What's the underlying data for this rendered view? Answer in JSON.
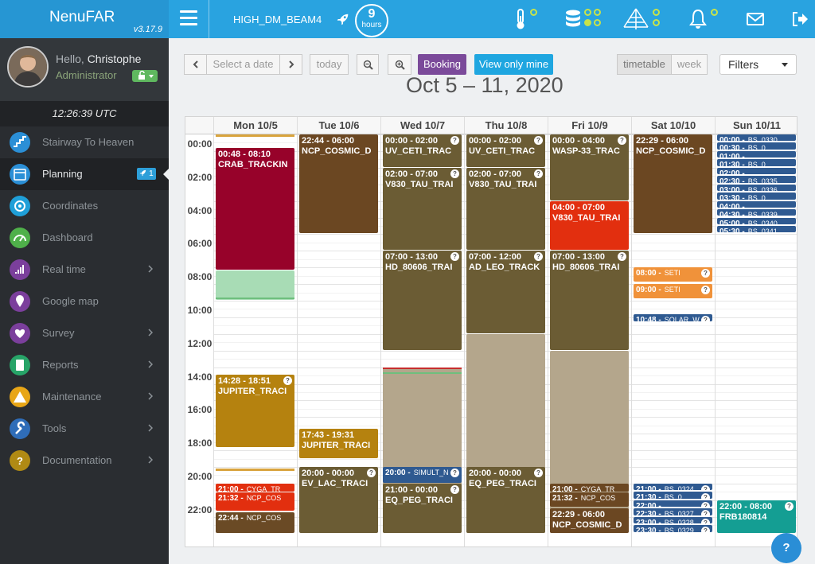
{
  "app": {
    "name": "NenuFAR",
    "version": "v3.17.9"
  },
  "header": {
    "beam": "HIGH_DM_BEAM4",
    "hours_value": "9",
    "hours_unit": "hours"
  },
  "user": {
    "hello": "Hello,",
    "name": "Christophe",
    "role": "Administrator"
  },
  "clock": "12:26:39 UTC",
  "nav": [
    {
      "label": "Stairway To Heaven",
      "icon": "stairs-icon",
      "color": "#2b8fd6"
    },
    {
      "label": "Planning",
      "icon": "calendar-icon",
      "color": "#2b8fd6",
      "badge": "1",
      "active": true
    },
    {
      "label": "Coordinates",
      "icon": "target-icon",
      "color": "#1f9fd8"
    },
    {
      "label": "Dashboard",
      "icon": "gauge-icon",
      "color": "#4fb04a"
    },
    {
      "label": "Real time",
      "icon": "signal-icon",
      "color": "#7b3f9c",
      "chevron": true
    },
    {
      "label": "Google map",
      "icon": "map-pin-icon",
      "color": "#7b3f9c"
    },
    {
      "label": "Survey",
      "icon": "heartbeat-icon",
      "color": "#7b3f9c",
      "chevron": true
    },
    {
      "label": "Reports",
      "icon": "report-icon",
      "color": "#27a468",
      "chevron": true
    },
    {
      "label": "Maintenance",
      "icon": "warning-icon",
      "color": "#e8a617",
      "chevron": true
    },
    {
      "label": "Tools",
      "icon": "wrench-icon",
      "color": "#2f6db8",
      "chevron": true
    },
    {
      "label": "Documentation",
      "icon": "question-icon",
      "color": "#b08a14",
      "chevron": true
    }
  ],
  "toolbar": {
    "select_date": "Select a date",
    "today": "today",
    "booking": "Booking",
    "view_only_mine": "View only mine",
    "timetable": "timetable",
    "week": "week",
    "filters": "Filters"
  },
  "range_title": "Oct 5 – 11, 2020",
  "days": [
    "Mon 10/5",
    "Tue 10/6",
    "Wed 10/7",
    "Thu 10/8",
    "Fri 10/9",
    "Sat 10/10",
    "Sun 10/11"
  ],
  "hours": [
    "00:00",
    "02:00",
    "04:00",
    "06:00",
    "08:00",
    "10:00",
    "12:00",
    "14:00",
    "16:00",
    "18:00",
    "20:00",
    "22:00"
  ],
  "events": [
    {
      "day": 0,
      "start": 0.0,
      "end": 0.2,
      "color": "#d9a43e",
      "bar": true
    },
    {
      "day": 0,
      "start": 0.8,
      "end": 8.17,
      "color": "#97022a",
      "time": "00:48 - 08:10",
      "title": "CRAB_TRACKIN"
    },
    {
      "day": 0,
      "start": 8.17,
      "end": 10.0,
      "color": "#a8dcb5",
      "empty": true
    },
    {
      "day": 0,
      "start": 14.47,
      "end": 18.85,
      "color": "#b5820f",
      "time": "14:28 - 18:51",
      "title": "JUPITER_TRACI",
      "q": true
    },
    {
      "day": 0,
      "start": 20.1,
      "end": 20.3,
      "color": "#d9a43e",
      "bar": true
    },
    {
      "day": 0,
      "start": 21.0,
      "end": 21.53,
      "color": "#e22f0f",
      "time": "21:00 -",
      "title": "CYGA_TR",
      "small": true
    },
    {
      "day": 0,
      "start": 21.53,
      "end": 22.7,
      "color": "#e22f0f",
      "time": "21:32 -",
      "title": "NCP_COS",
      "small": true
    },
    {
      "day": 0,
      "start": 22.73,
      "end": 24.0,
      "color": "#6a4a25",
      "time": "22:44 -",
      "title": "NCP_COS",
      "small": true
    },
    {
      "day": 1,
      "start": 0.0,
      "end": 6.0,
      "color": "#6b4722",
      "time": "22:44 - 06:00",
      "title": "NCP_COSMIC_D"
    },
    {
      "day": 1,
      "start": 17.72,
      "end": 19.52,
      "color": "#b5820f",
      "time": "17:43 - 19:31",
      "title": "JUPITER_TRACI"
    },
    {
      "day": 1,
      "start": 20.0,
      "end": 24.0,
      "color": "#6b5c34",
      "time": "20:00 - 00:00",
      "title": "EV_LAC_TRACI",
      "q": true
    },
    {
      "day": 2,
      "start": 0.0,
      "end": 2.0,
      "color": "#6b5c34",
      "time": "00:00 - 02:00",
      "title": "UV_CETI_TRAC",
      "q": true
    },
    {
      "day": 2,
      "start": 2.0,
      "end": 7.0,
      "color": "#6b5c34",
      "time": "02:00 - 07:00",
      "title": "V830_TAU_TRAI",
      "q": true
    },
    {
      "day": 2,
      "start": 7.0,
      "end": 13.0,
      "color": "#6b5c34",
      "time": "07:00 - 13:00",
      "title": "HD_80606_TRAI",
      "q": true
    },
    {
      "day": 2,
      "start": 14.0,
      "end": 24.0,
      "color": "#b4a68c",
      "empty": true
    },
    {
      "day": 2,
      "start": 20.0,
      "end": 21.0,
      "color": "#2f5a91",
      "time": "20:00 -",
      "title": "SIMULT_N",
      "small": true,
      "q": true
    },
    {
      "day": 2,
      "start": 21.0,
      "end": 24.0,
      "color": "#6b5c34",
      "time": "21:00 - 00:00",
      "title": "EQ_PEG_TRACI",
      "q": true
    },
    {
      "day": 3,
      "start": 0.0,
      "end": 2.0,
      "color": "#6b5c34",
      "time": "00:00 - 02:00",
      "title": "UV_CETI_TRAC",
      "q": true
    },
    {
      "day": 3,
      "start": 2.0,
      "end": 7.0,
      "color": "#6b5c34",
      "time": "02:00 - 07:00",
      "title": "V830_TAU_TRAI",
      "q": true
    },
    {
      "day": 3,
      "start": 7.0,
      "end": 12.0,
      "color": "#6b5c34",
      "time": "07:00 - 12:00",
      "title": "AD_LEO_TRACK",
      "q": true
    },
    {
      "day": 3,
      "start": 12.0,
      "end": 24.0,
      "color": "#b4a68c",
      "empty": true
    },
    {
      "day": 3,
      "start": 20.0,
      "end": 24.0,
      "color": "#6b5c34",
      "time": "20:00 - 00:00",
      "title": "EQ_PEG_TRACI",
      "q": true
    },
    {
      "day": 4,
      "start": 0.0,
      "end": 4.0,
      "color": "#6b5c34",
      "time": "00:00 - 04:00",
      "title": "WASP-33_TRAC",
      "q": true
    },
    {
      "day": 4,
      "start": 4.0,
      "end": 7.0,
      "color": "#e22f0f",
      "time": "04:00 - 07:00",
      "title": "V830_TAU_TRAI"
    },
    {
      "day": 4,
      "start": 7.0,
      "end": 13.0,
      "color": "#6b5c34",
      "time": "07:00 - 13:00",
      "title": "HD_80606_TRAI",
      "q": true
    },
    {
      "day": 4,
      "start": 13.0,
      "end": 24.0,
      "color": "#b4a68c",
      "empty": true
    },
    {
      "day": 4,
      "start": 21.0,
      "end": 21.53,
      "color": "#6b4722",
      "time": "21:00 -",
      "title": "CYGA_TR",
      "small": true
    },
    {
      "day": 4,
      "start": 21.53,
      "end": 22.45,
      "color": "#6b4722",
      "time": "21:32 -",
      "title": "NCP_COS",
      "small": true
    },
    {
      "day": 4,
      "start": 22.48,
      "end": 24.0,
      "color": "#6b4722",
      "time": "22:29 - 06:00",
      "title": "NCP_COSMIC_D"
    },
    {
      "day": 5,
      "start": 0.0,
      "end": 6.0,
      "color": "#6b4722",
      "time": "22:29 - 06:00",
      "title": "NCP_COSMIC_D"
    },
    {
      "day": 5,
      "start": 8.0,
      "end": 8.9,
      "color": "#f0923a",
      "time": "08:00 -",
      "title": "SETI",
      "small": true,
      "q": true
    },
    {
      "day": 5,
      "start": 9.0,
      "end": 9.9,
      "color": "#f0923a",
      "time": "09:00 -",
      "title": "SETI",
      "small": true,
      "q": true
    },
    {
      "day": 5,
      "start": 10.8,
      "end": 11.3,
      "color": "#2f5a91",
      "time": "10:48 -",
      "title": "SOLAR_W",
      "small": true,
      "q": true
    },
    {
      "day": 5,
      "start": 21.0,
      "end": 21.45,
      "color": "#2f5a91",
      "time": "21:00 -",
      "title": "BS_0324",
      "small": true,
      "q": true
    },
    {
      "day": 5,
      "start": 21.5,
      "end": 21.95,
      "color": "#2f5a91",
      "time": "21:30 -",
      "title": "BS_0",
      "small": true,
      "q": true
    },
    {
      "day": 5,
      "start": 22.0,
      "end": 22.45,
      "color": "#2f5a91",
      "time": "22:00 -",
      "title": "",
      "small": true,
      "q": true
    },
    {
      "day": 5,
      "start": 22.5,
      "end": 22.95,
      "color": "#2f5a91",
      "time": "22:30 -",
      "title": "BS_0327",
      "small": true,
      "q": true
    },
    {
      "day": 5,
      "start": 23.0,
      "end": 23.45,
      "color": "#2f5a91",
      "time": "23:00 -",
      "title": "BS_0328",
      "small": true,
      "q": true
    },
    {
      "day": 5,
      "start": 23.5,
      "end": 23.95,
      "color": "#2f5a91",
      "time": "23:30 -",
      "title": "BS_0329",
      "small": true,
      "q": true
    },
    {
      "day": 6,
      "start": 0.0,
      "end": 0.45,
      "color": "#2f5a91",
      "time": "00:00 -",
      "title": "BS_0330",
      "small": true
    },
    {
      "day": 6,
      "start": 0.5,
      "end": 0.95,
      "color": "#2f5a91",
      "time": "00:30 -",
      "title": "BS_0",
      "small": true
    },
    {
      "day": 6,
      "start": 1.0,
      "end": 1.45,
      "color": "#2f5a91",
      "time": "01:00 -",
      "title": "",
      "small": true
    },
    {
      "day": 6,
      "start": 1.5,
      "end": 1.95,
      "color": "#2f5a91",
      "time": "01:30 -",
      "title": "BS_0",
      "small": true
    },
    {
      "day": 6,
      "start": 2.0,
      "end": 2.45,
      "color": "#2f5a91",
      "time": "02:00 -",
      "title": "",
      "small": true
    },
    {
      "day": 6,
      "start": 2.5,
      "end": 2.95,
      "color": "#2f5a91",
      "time": "02:30 -",
      "title": "BS_0335",
      "small": true
    },
    {
      "day": 6,
      "start": 3.0,
      "end": 3.45,
      "color": "#2f5a91",
      "time": "03:00 -",
      "title": "BS_0336",
      "small": true
    },
    {
      "day": 6,
      "start": 3.5,
      "end": 3.95,
      "color": "#2f5a91",
      "time": "03:30 -",
      "title": "BS_0",
      "small": true
    },
    {
      "day": 6,
      "start": 4.0,
      "end": 4.45,
      "color": "#2f5a91",
      "time": "04:00 -",
      "title": "",
      "small": true
    },
    {
      "day": 6,
      "start": 4.5,
      "end": 4.95,
      "color": "#2f5a91",
      "time": "04:30 -",
      "title": "BS_0339",
      "small": true
    },
    {
      "day": 6,
      "start": 5.0,
      "end": 5.45,
      "color": "#2f5a91",
      "time": "05:00 -",
      "title": "BS_0340",
      "small": true
    },
    {
      "day": 6,
      "start": 5.5,
      "end": 5.95,
      "color": "#2f5a91",
      "time": "05:30 -",
      "title": "BS_0341",
      "small": true
    },
    {
      "day": 6,
      "start": 22.0,
      "end": 24.0,
      "color": "#149e93",
      "time": "22:00 - 08:00",
      "title": "FRB180814",
      "q": true
    }
  ],
  "markers": [
    {
      "day": 2,
      "hour": 14.0,
      "color": "#c62d2d"
    },
    {
      "day": 2,
      "hour": 14.3,
      "color": "#6ebf7d"
    },
    {
      "day": 0,
      "hour": 9.8,
      "color": "#6ebf7d"
    }
  ],
  "help": "?"
}
